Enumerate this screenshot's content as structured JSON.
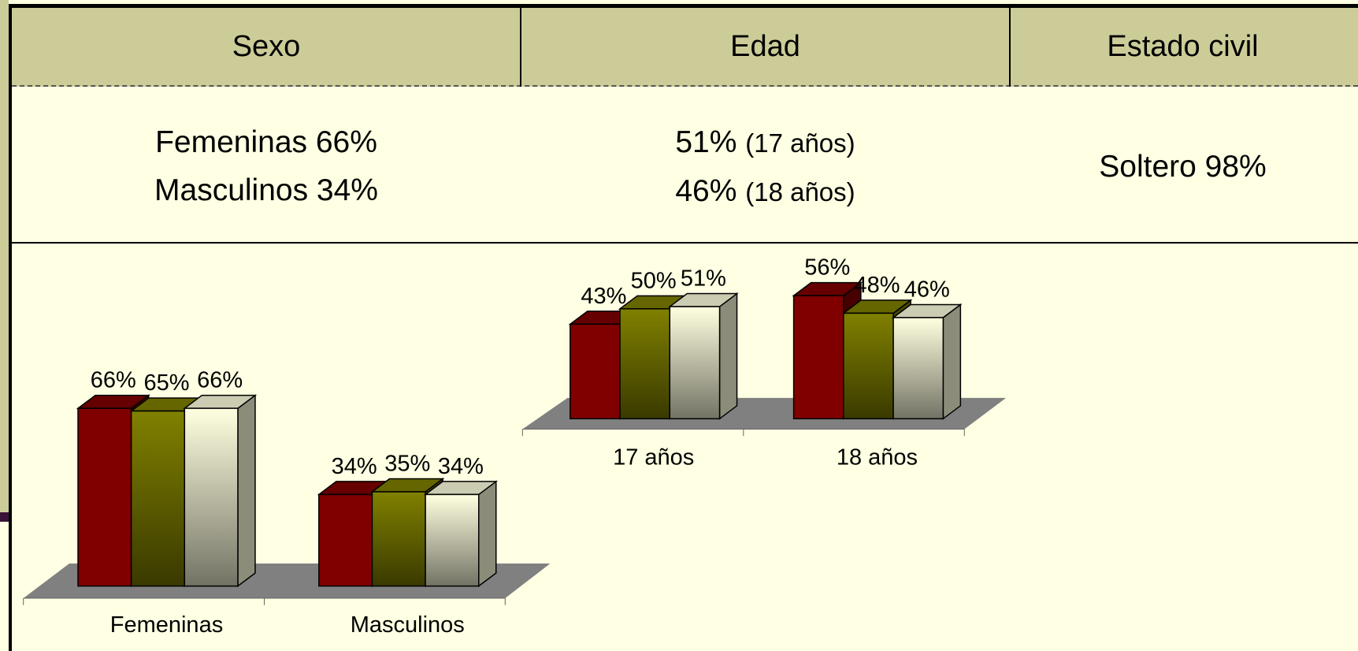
{
  "table": {
    "header": [
      "Sexo",
      "Edad",
      "Estado civil"
    ],
    "sexo": [
      "Femeninas 66%",
      "Masculinos 34%"
    ],
    "edad": [
      {
        "value": "51%",
        "detail": "(17 años)"
      },
      {
        "value": "46%",
        "detail": "(18 años)"
      }
    ],
    "estado_civil": "Soltero 98%"
  },
  "chart_data": [
    {
      "type": "bar3d",
      "categories": [
        "Femeninas",
        "Masculinos"
      ],
      "series": [
        {
          "color": "#800000",
          "values": [
            66,
            34
          ],
          "value_labels": [
            "66%",
            "34%"
          ]
        },
        {
          "color": "#808000",
          "values": [
            65,
            35
          ],
          "value_labels": [
            "65%",
            "35%"
          ]
        },
        {
          "color": "#ffffe0",
          "values": [
            66,
            34
          ],
          "value_labels": [
            "66%",
            "34%"
          ]
        }
      ]
    },
    {
      "type": "bar3d",
      "categories": [
        "17 años",
        "18 años"
      ],
      "series": [
        {
          "color": "#800000",
          "values": [
            43,
            56
          ],
          "value_labels": [
            "43%",
            "56%"
          ]
        },
        {
          "color": "#808000",
          "values": [
            50,
            48
          ],
          "value_labels": [
            "50%",
            "48%"
          ]
        },
        {
          "color": "#ffffe0",
          "values": [
            51,
            46
          ],
          "value_labels": [
            "51%",
            "46%"
          ]
        }
      ]
    }
  ]
}
